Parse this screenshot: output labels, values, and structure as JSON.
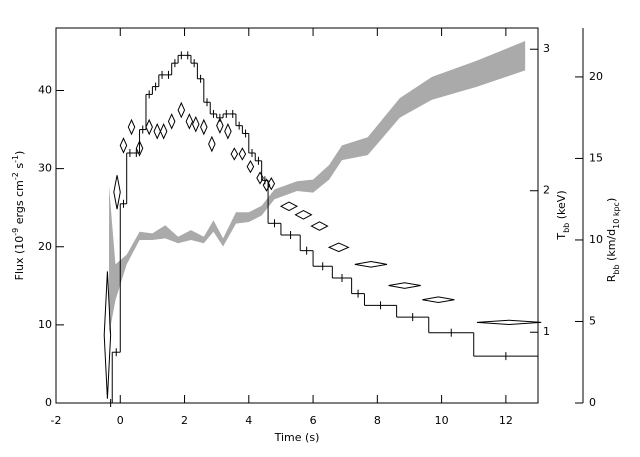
{
  "chart_data": [
    {
      "type": "histogram",
      "xlabel": "Time (s)",
      "ylabel": [
        "Flux (10",
        "-9",
        " ergs cm",
        "-2",
        " s",
        "-1",
        ")"
      ],
      "xlim": [
        -2,
        13
      ],
      "xticks": [
        -2,
        0,
        2,
        4,
        6,
        8,
        10,
        12
      ],
      "ylim": [
        0,
        48
      ],
      "yticks": [
        0,
        10,
        20,
        30,
        40
      ],
      "color": "#000000",
      "bins": [
        -0.35,
        -0.25,
        0,
        0.2,
        0.4,
        0.6,
        0.8,
        1.0,
        1.2,
        1.4,
        1.6,
        1.8,
        2.0,
        2.2,
        2.4,
        2.6,
        2.8,
        3.0,
        3.2,
        3.4,
        3.6,
        3.8,
        4.0,
        4.2,
        4.4,
        4.6,
        5.0,
        5.6,
        6.0,
        6.6,
        7.2,
        7.6,
        8.6,
        9.6,
        11.0,
        13.0
      ],
      "values": [
        0,
        6.5,
        25.5,
        32,
        32,
        35,
        39.5,
        40.5,
        42,
        42,
        43.5,
        44.5,
        44.5,
        43.5,
        41.5,
        38.5,
        37,
        36.5,
        37,
        37,
        35.5,
        34.5,
        32,
        31,
        28.5,
        23,
        21.5,
        19.5,
        17.5,
        16,
        14,
        12.5,
        11,
        9,
        6
      ]
    },
    {
      "type": "scatter",
      "marker": "diamond",
      "ylabel": [
        "T",
        "bb",
        " (keV)"
      ],
      "axis": "y2",
      "xlim": [
        -2,
        13
      ],
      "ylim": [
        0.5,
        3.15
      ],
      "yticks": [
        1,
        2,
        3
      ],
      "color": "#000000",
      "x": [
        -0.4,
        -0.1,
        0.1,
        0.35,
        0.6,
        0.9,
        1.15,
        1.35,
        1.6,
        1.9,
        2.15,
        2.35,
        2.6,
        2.85,
        3.1,
        3.35,
        3.55,
        3.8,
        4.05,
        4.35,
        4.55,
        4.7,
        5.25,
        5.7,
        6.2,
        6.8,
        7.8,
        8.85,
        9.9,
        12.1
      ],
      "values": [
        0.98,
        1.99,
        2.32,
        2.45,
        2.3,
        2.45,
        2.42,
        2.42,
        2.49,
        2.57,
        2.49,
        2.47,
        2.45,
        2.33,
        2.46,
        2.42,
        2.26,
        2.26,
        2.17,
        2.09,
        2.04,
        2.05,
        1.89,
        1.83,
        1.75,
        1.6,
        1.48,
        1.33,
        1.23,
        1.07
      ],
      "x_errors": [
        0.1,
        0.1,
        0.1,
        0.1,
        0.1,
        0.1,
        0.1,
        0.1,
        0.1,
        0.1,
        0.1,
        0.1,
        0.1,
        0.1,
        0.1,
        0.1,
        0.1,
        0.1,
        0.1,
        0.1,
        0.1,
        0.1,
        0.25,
        0.25,
        0.25,
        0.3,
        0.5,
        0.5,
        0.5,
        1.0
      ],
      "errors": [
        0.45,
        0.12,
        0.05,
        0.05,
        0.05,
        0.05,
        0.05,
        0.05,
        0.05,
        0.05,
        0.05,
        0.05,
        0.05,
        0.05,
        0.05,
        0.05,
        0.04,
        0.04,
        0.04,
        0.04,
        0.04,
        0.04,
        0.03,
        0.03,
        0.03,
        0.03,
        0.02,
        0.02,
        0.02,
        0.015
      ]
    },
    {
      "type": "band",
      "ylabel": [
        "R",
        "bb",
        " (km/d",
        "10 kpc",
        ")"
      ],
      "axis": "y3",
      "xlim": [
        -2,
        13
      ],
      "ylim": [
        0,
        23
      ],
      "yticks": [
        0,
        5,
        10,
        15,
        20
      ],
      "color": "#aaaaaa",
      "x": [
        -0.35,
        -0.15,
        0.2,
        0.6,
        1.0,
        1.4,
        1.8,
        2.2,
        2.6,
        2.9,
        3.2,
        3.6,
        4.0,
        4.4,
        4.8,
        5.5,
        6.0,
        6.5,
        6.9,
        7.7,
        8.7,
        9.7,
        11.1,
        12.6
      ],
      "lower": [
        4.2,
        6.3,
        8.5,
        10,
        10,
        10.1,
        9.8,
        10,
        9.8,
        10.5,
        9.6,
        11,
        11.1,
        11.5,
        12.5,
        13,
        12.9,
        13.7,
        14.9,
        15.2,
        17.5,
        18.6,
        19.4,
        20.4
      ],
      "upper": [
        13.3,
        8.5,
        9.1,
        10.5,
        10.4,
        10.9,
        10.2,
        10.6,
        10.2,
        11.2,
        10.1,
        11.7,
        11.7,
        12.1,
        13.1,
        13.6,
        13.7,
        14.6,
        15.8,
        16.3,
        18.7,
        20,
        21,
        22.2
      ]
    }
  ]
}
